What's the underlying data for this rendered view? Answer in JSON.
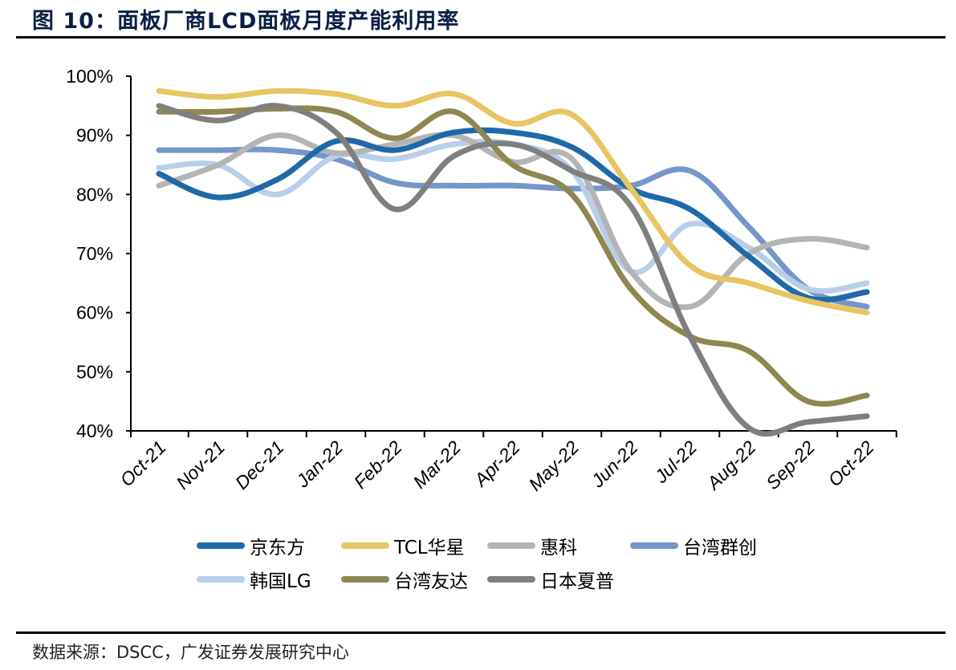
{
  "figure": {
    "title": "图 10：面板厂商LCD面板月度产能利用率",
    "source": "数据来源：DSCC，广发证券发展研究中心"
  },
  "chart_data": {
    "type": "line",
    "title": "面板厂商LCD面板月度产能利用率",
    "xlabel": "",
    "ylabel": "",
    "categories": [
      "Oct-21",
      "Nov-21",
      "Dec-21",
      "Jan-22",
      "Feb-22",
      "Mar-22",
      "Apr-22",
      "May-22",
      "Jun-22",
      "Jul-22",
      "Aug-22",
      "Sep-22",
      "Oct-22"
    ],
    "ylim": [
      40,
      100
    ],
    "yticks": [
      40,
      50,
      60,
      70,
      80,
      90,
      100
    ],
    "ytick_labels": [
      "40%",
      "50%",
      "60%",
      "70%",
      "80%",
      "90%",
      "100%"
    ],
    "grid": false,
    "smooth": true,
    "legend_position": "bottom",
    "series": [
      {
        "name": "京东方",
        "color": "#1F69A8",
        "values": [
          83.5,
          79.5,
          82.5,
          89,
          87.5,
          90.5,
          90.5,
          88,
          81,
          77.5,
          69.5,
          62.5,
          63.5
        ]
      },
      {
        "name": "TCL华星",
        "color": "#E8C562",
        "values": [
          97.5,
          96.5,
          97.5,
          97,
          95,
          97,
          92,
          93.5,
          81,
          68,
          65,
          62,
          60
        ]
      },
      {
        "name": "惠科",
        "color": "#B4B4B4",
        "values": [
          81.5,
          85,
          90,
          87,
          88.5,
          90,
          85.5,
          86,
          67,
          61,
          70,
          72.5,
          71
        ]
      },
      {
        "name": "台湾群创",
        "color": "#7596C8",
        "values": [
          87.5,
          87.5,
          87.5,
          86,
          82,
          81.5,
          81.5,
          81,
          81.5,
          84,
          74.5,
          64,
          61
        ]
      },
      {
        "name": "韩国LG",
        "color": "#B9CEE8",
        "values": [
          84.5,
          85,
          80,
          86.5,
          86,
          88.5,
          88.5,
          84,
          67,
          75,
          71,
          64,
          65
        ]
      },
      {
        "name": "台湾友达",
        "color": "#8F8650",
        "values": [
          94,
          94,
          94.5,
          94,
          89.5,
          94,
          85,
          80,
          64,
          56,
          53.5,
          45,
          46
        ]
      },
      {
        "name": "日本夏普",
        "color": "#7F7F7F",
        "values": [
          95,
          92.5,
          95,
          90.5,
          77.5,
          86.5,
          88.5,
          84,
          78,
          56,
          40.5,
          41.5,
          42.5
        ]
      }
    ]
  }
}
